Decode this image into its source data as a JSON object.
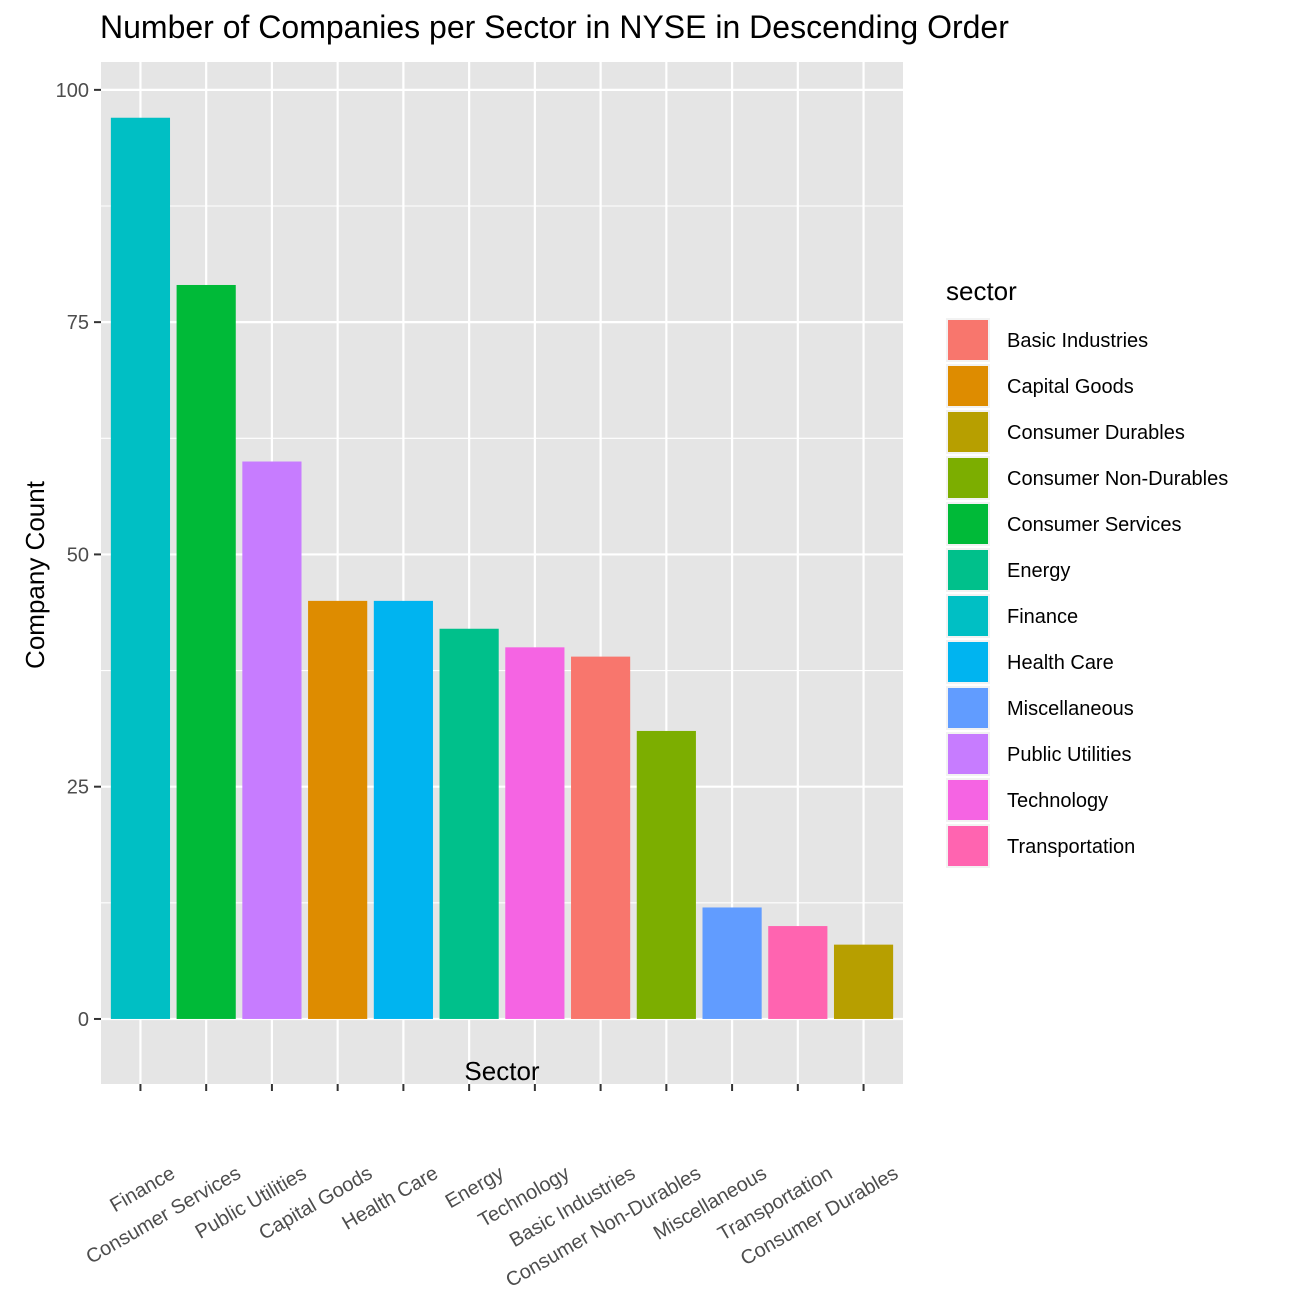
{
  "chart_data": {
    "type": "bar",
    "title": "Number of Companies per Sector in NYSE in Descending Order",
    "xlabel": "Sector",
    "ylabel": "Company Count",
    "ylim": [
      -7,
      103
    ],
    "yticks": [
      0,
      25,
      50,
      75,
      100
    ],
    "categories": [
      "Finance",
      "Consumer Services",
      "Public Utilities",
      "Capital Goods",
      "Health Care",
      "Energy",
      "Technology",
      "Basic Industries",
      "Consumer Non-Durables",
      "Miscellaneous",
      "Transportation",
      "Consumer Durables"
    ],
    "values": [
      97,
      79,
      60,
      45,
      45,
      42,
      40,
      39,
      31,
      12,
      10,
      8
    ],
    "x_tick_rotation_deg": 30,
    "grid": true,
    "panel_background": "#e5e5e5",
    "grid_color": "#ffffff",
    "legend": {
      "title": "sector",
      "position": "right",
      "entries": [
        {
          "label": "Basic Industries",
          "color": "#F8766D"
        },
        {
          "label": "Capital Goods",
          "color": "#DE8C00"
        },
        {
          "label": "Consumer Durables",
          "color": "#B79F00"
        },
        {
          "label": "Consumer Non-Durables",
          "color": "#7CAE00"
        },
        {
          "label": "Consumer Services",
          "color": "#00BA38"
        },
        {
          "label": "Energy",
          "color": "#00C08B"
        },
        {
          "label": "Finance",
          "color": "#00BFC4"
        },
        {
          "label": "Health Care",
          "color": "#00B4F0"
        },
        {
          "label": "Miscellaneous",
          "color": "#619CFF"
        },
        {
          "label": "Public Utilities",
          "color": "#C77CFF"
        },
        {
          "label": "Technology",
          "color": "#F564E3"
        },
        {
          "label": "Transportation",
          "color": "#FF64B0"
        }
      ]
    }
  }
}
